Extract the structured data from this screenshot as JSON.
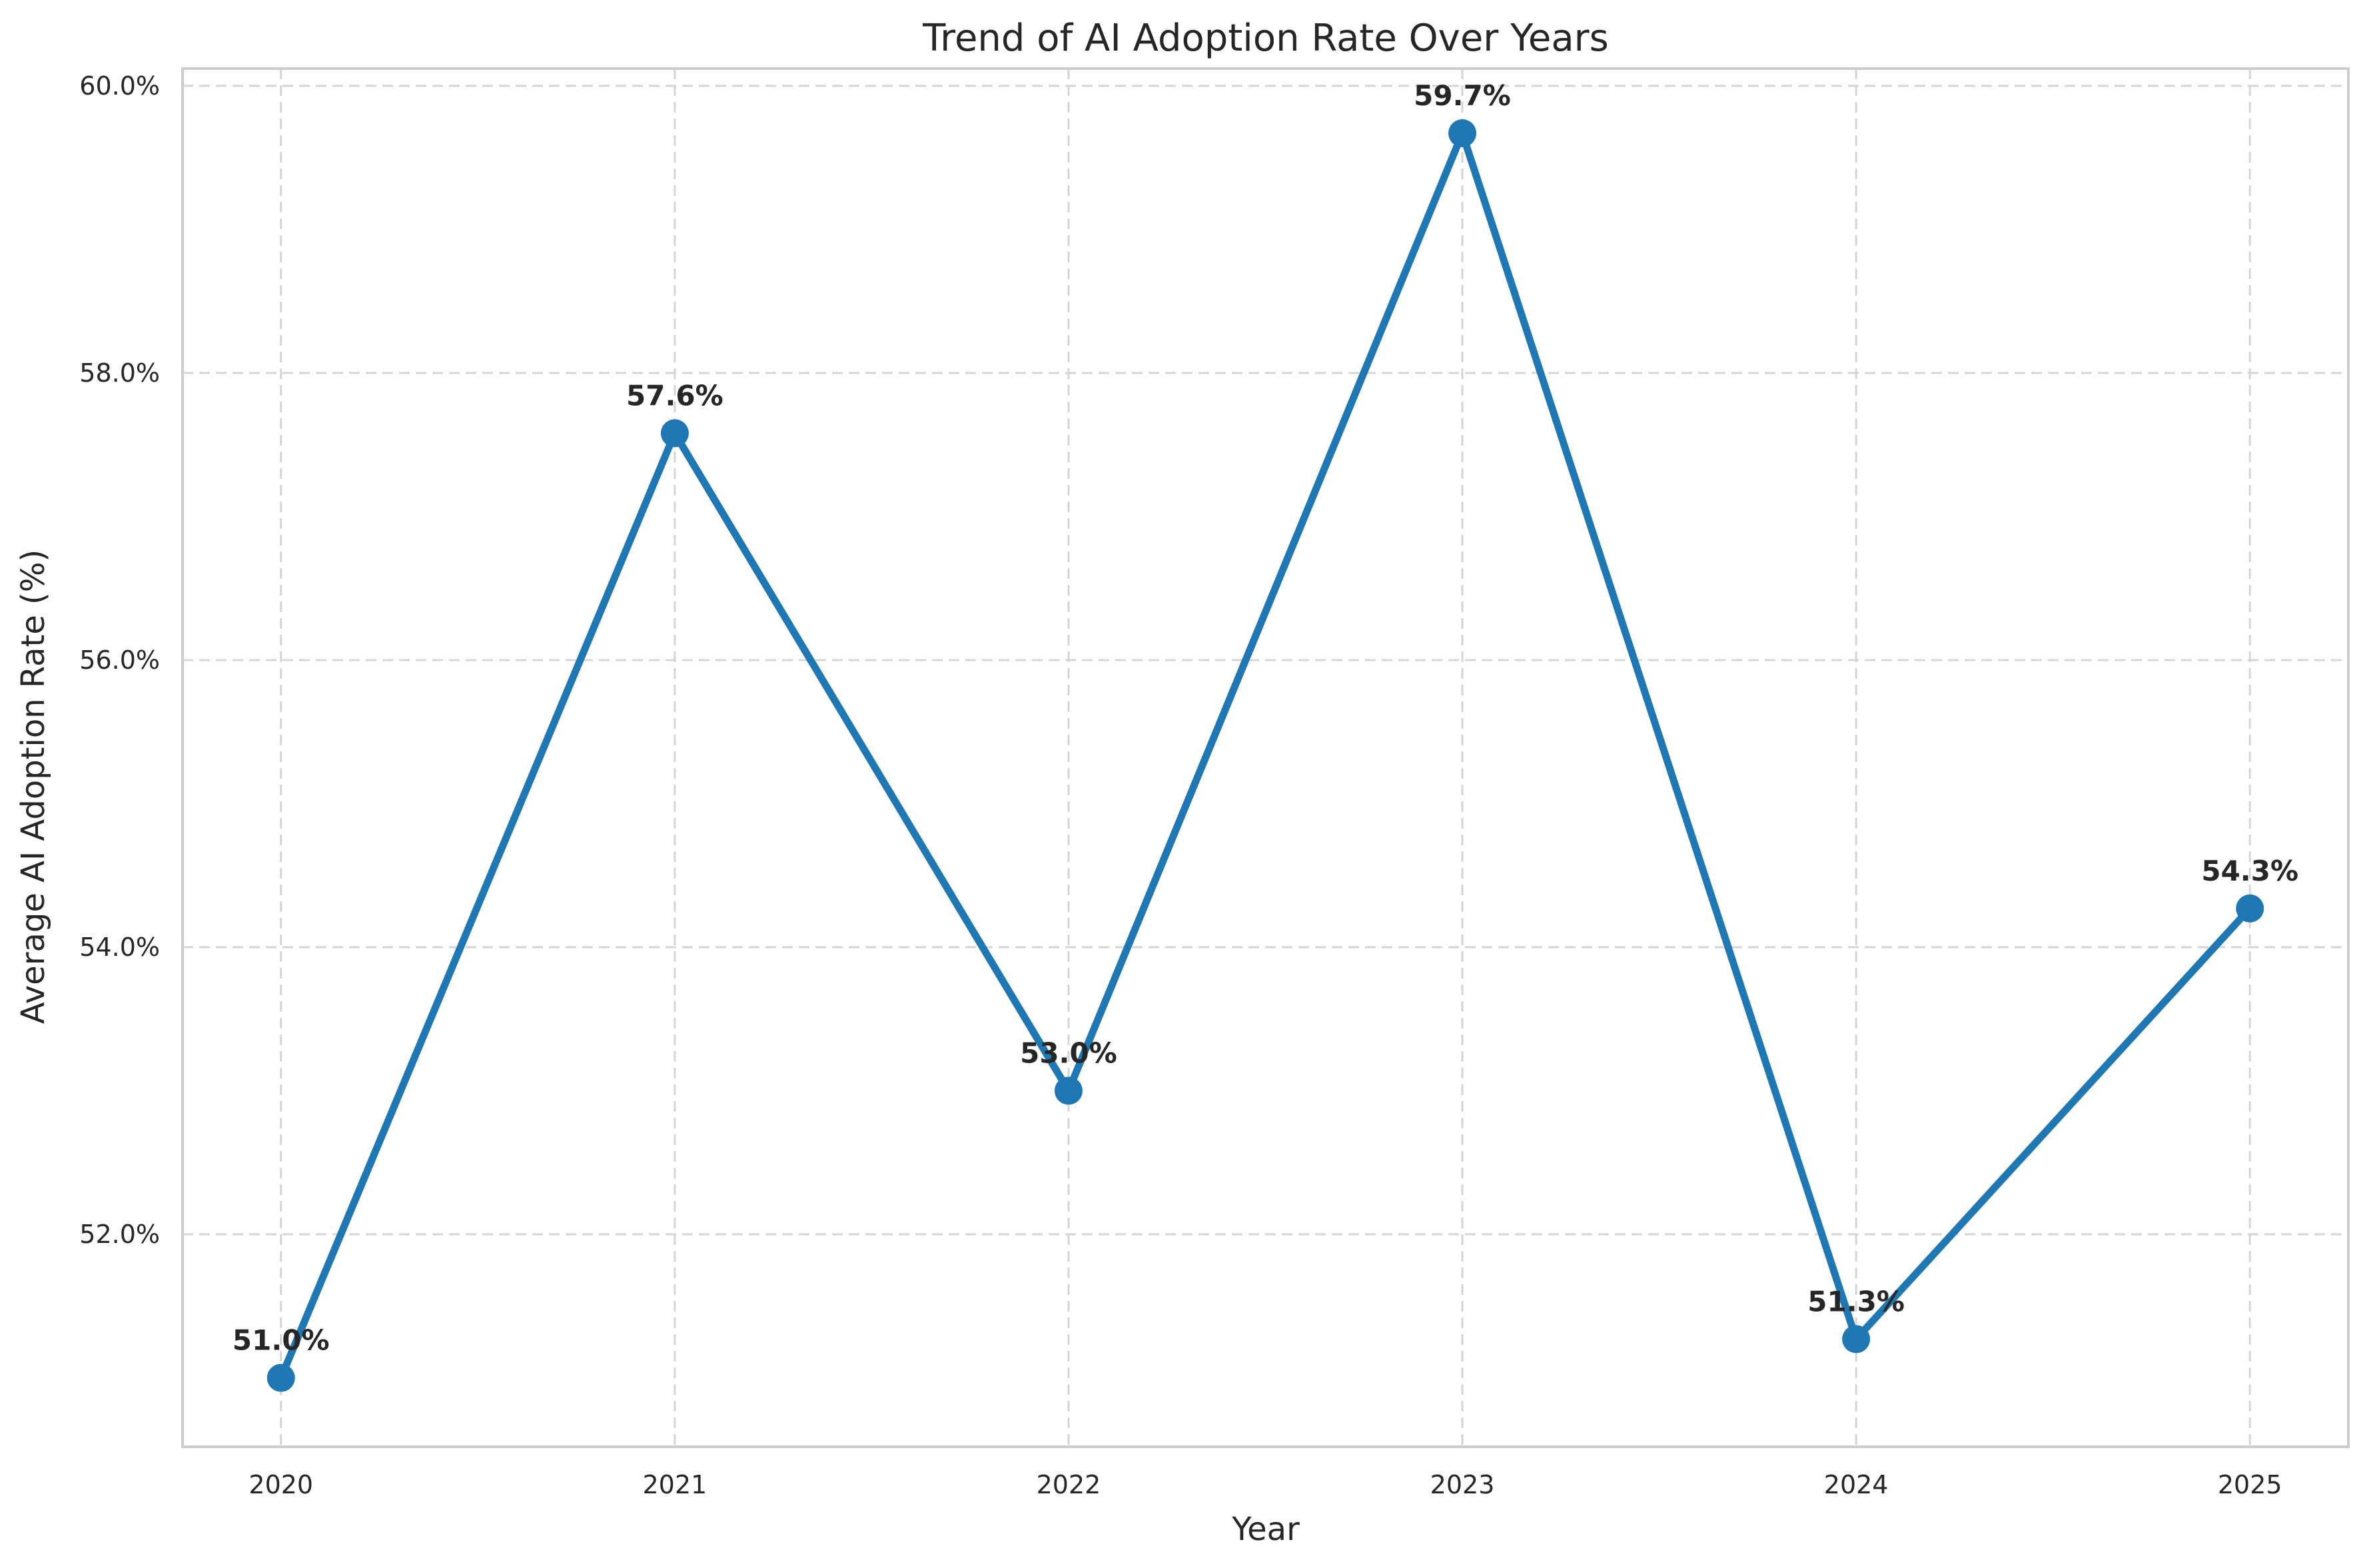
{
  "chart_data": {
    "type": "line",
    "title": "Trend of AI Adoption Rate Over Years",
    "xlabel": "Year",
    "ylabel": "Average AI Adoption Rate (%)",
    "x": [
      "2020",
      "2021",
      "2022",
      "2023",
      "2024",
      "2025"
    ],
    "series": [
      {
        "values": [
          51.0,
          57.58,
          53.0,
          59.67,
          51.27,
          54.27
        ],
        "data_labels": [
          "51.0%",
          "57.6%",
          "53.0%",
          "59.7%",
          "51.3%",
          "54.3%"
        ],
        "color": "#1f77b4"
      }
    ],
    "yticks": [
      52.0,
      54.0,
      56.0,
      58.0,
      60.0
    ],
    "ytick_labels": [
      "52.0%",
      "54.0%",
      "56.0%",
      "58.0%",
      "60.0%"
    ],
    "ylim": [
      50.52,
      60.12
    ],
    "xlim": [
      -0.25,
      5.25
    ],
    "grid": true,
    "marker": "circle"
  }
}
